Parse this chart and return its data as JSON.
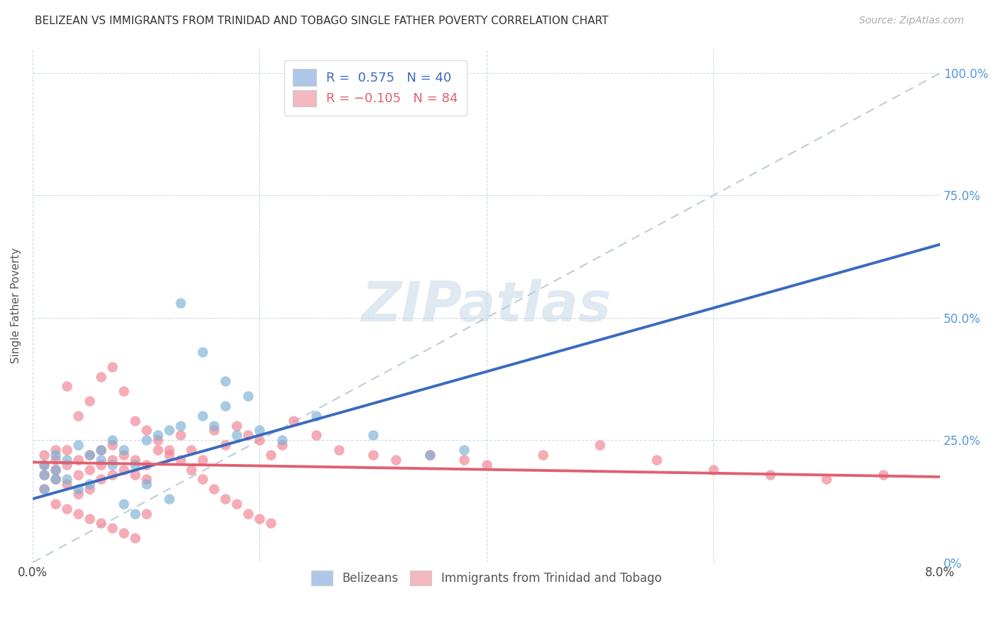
{
  "title": "BELIZEAN VS IMMIGRANTS FROM TRINIDAD AND TOBAGO SINGLE FATHER POVERTY CORRELATION CHART",
  "source": "Source: ZipAtlas.com",
  "ylabel": "Single Father Poverty",
  "yticks": [
    "0%",
    "25.0%",
    "50.0%",
    "75.0%",
    "100.0%"
  ],
  "ytick_vals": [
    0.0,
    0.25,
    0.5,
    0.75,
    1.0
  ],
  "xmin": 0.0,
  "xmax": 0.08,
  "ymin": 0.0,
  "ymax": 1.05,
  "legend1_color": "#aec6e8",
  "legend2_color": "#f4b8c1",
  "scatter1_color": "#7ab0d4",
  "scatter2_color": "#f08090",
  "trend1_color": "#3a6abf",
  "trend2_color": "#e06070",
  "trend_dash_color": "#b8c8d8",
  "watermark": "ZIPatlas",
  "trend1_x0": 0.0,
  "trend1_y0": 0.13,
  "trend1_x1": 0.08,
  "trend1_y1": 0.65,
  "trend2_x0": 0.0,
  "trend2_y0": 0.205,
  "trend2_x1": 0.08,
  "trend2_y1": 0.175,
  "belizean_x": [
    0.001,
    0.001,
    0.001,
    0.002,
    0.002,
    0.002,
    0.003,
    0.003,
    0.004,
    0.004,
    0.005,
    0.005,
    0.006,
    0.006,
    0.007,
    0.007,
    0.008,
    0.009,
    0.01,
    0.01,
    0.011,
    0.012,
    0.013,
    0.015,
    0.016,
    0.017,
    0.018,
    0.02,
    0.022,
    0.025,
    0.013,
    0.015,
    0.017,
    0.019,
    0.03,
    0.035,
    0.038,
    0.008,
    0.009,
    0.012
  ],
  "belizean_y": [
    0.18,
    0.2,
    0.15,
    0.19,
    0.22,
    0.17,
    0.17,
    0.21,
    0.24,
    0.15,
    0.22,
    0.16,
    0.21,
    0.23,
    0.2,
    0.25,
    0.23,
    0.2,
    0.25,
    0.16,
    0.26,
    0.27,
    0.28,
    0.3,
    0.28,
    0.32,
    0.26,
    0.27,
    0.25,
    0.3,
    0.53,
    0.43,
    0.37,
    0.34,
    0.26,
    0.22,
    0.23,
    0.12,
    0.1,
    0.13
  ],
  "trinidad_x": [
    0.001,
    0.001,
    0.001,
    0.001,
    0.002,
    0.002,
    0.002,
    0.002,
    0.003,
    0.003,
    0.003,
    0.004,
    0.004,
    0.004,
    0.005,
    0.005,
    0.005,
    0.006,
    0.006,
    0.006,
    0.007,
    0.007,
    0.007,
    0.008,
    0.008,
    0.009,
    0.009,
    0.01,
    0.01,
    0.011,
    0.012,
    0.013,
    0.014,
    0.015,
    0.016,
    0.017,
    0.018,
    0.019,
    0.02,
    0.021,
    0.022,
    0.023,
    0.025,
    0.027,
    0.03,
    0.032,
    0.035,
    0.038,
    0.04,
    0.045,
    0.05,
    0.055,
    0.06,
    0.065,
    0.07,
    0.075,
    0.003,
    0.004,
    0.005,
    0.006,
    0.007,
    0.008,
    0.009,
    0.01,
    0.011,
    0.012,
    0.013,
    0.014,
    0.015,
    0.016,
    0.017,
    0.018,
    0.019,
    0.02,
    0.021,
    0.002,
    0.003,
    0.004,
    0.005,
    0.006,
    0.007,
    0.008,
    0.009,
    0.01
  ],
  "trinidad_y": [
    0.18,
    0.2,
    0.22,
    0.15,
    0.19,
    0.21,
    0.17,
    0.23,
    0.2,
    0.23,
    0.16,
    0.21,
    0.18,
    0.14,
    0.22,
    0.19,
    0.15,
    0.23,
    0.2,
    0.17,
    0.24,
    0.21,
    0.18,
    0.22,
    0.19,
    0.21,
    0.18,
    0.2,
    0.17,
    0.23,
    0.22,
    0.26,
    0.23,
    0.21,
    0.27,
    0.24,
    0.28,
    0.26,
    0.25,
    0.22,
    0.24,
    0.29,
    0.26,
    0.23,
    0.22,
    0.21,
    0.22,
    0.21,
    0.2,
    0.22,
    0.24,
    0.21,
    0.19,
    0.18,
    0.17,
    0.18,
    0.36,
    0.3,
    0.33,
    0.38,
    0.4,
    0.35,
    0.29,
    0.27,
    0.25,
    0.23,
    0.21,
    0.19,
    0.17,
    0.15,
    0.13,
    0.12,
    0.1,
    0.09,
    0.08,
    0.12,
    0.11,
    0.1,
    0.09,
    0.08,
    0.07,
    0.06,
    0.05,
    0.1
  ]
}
